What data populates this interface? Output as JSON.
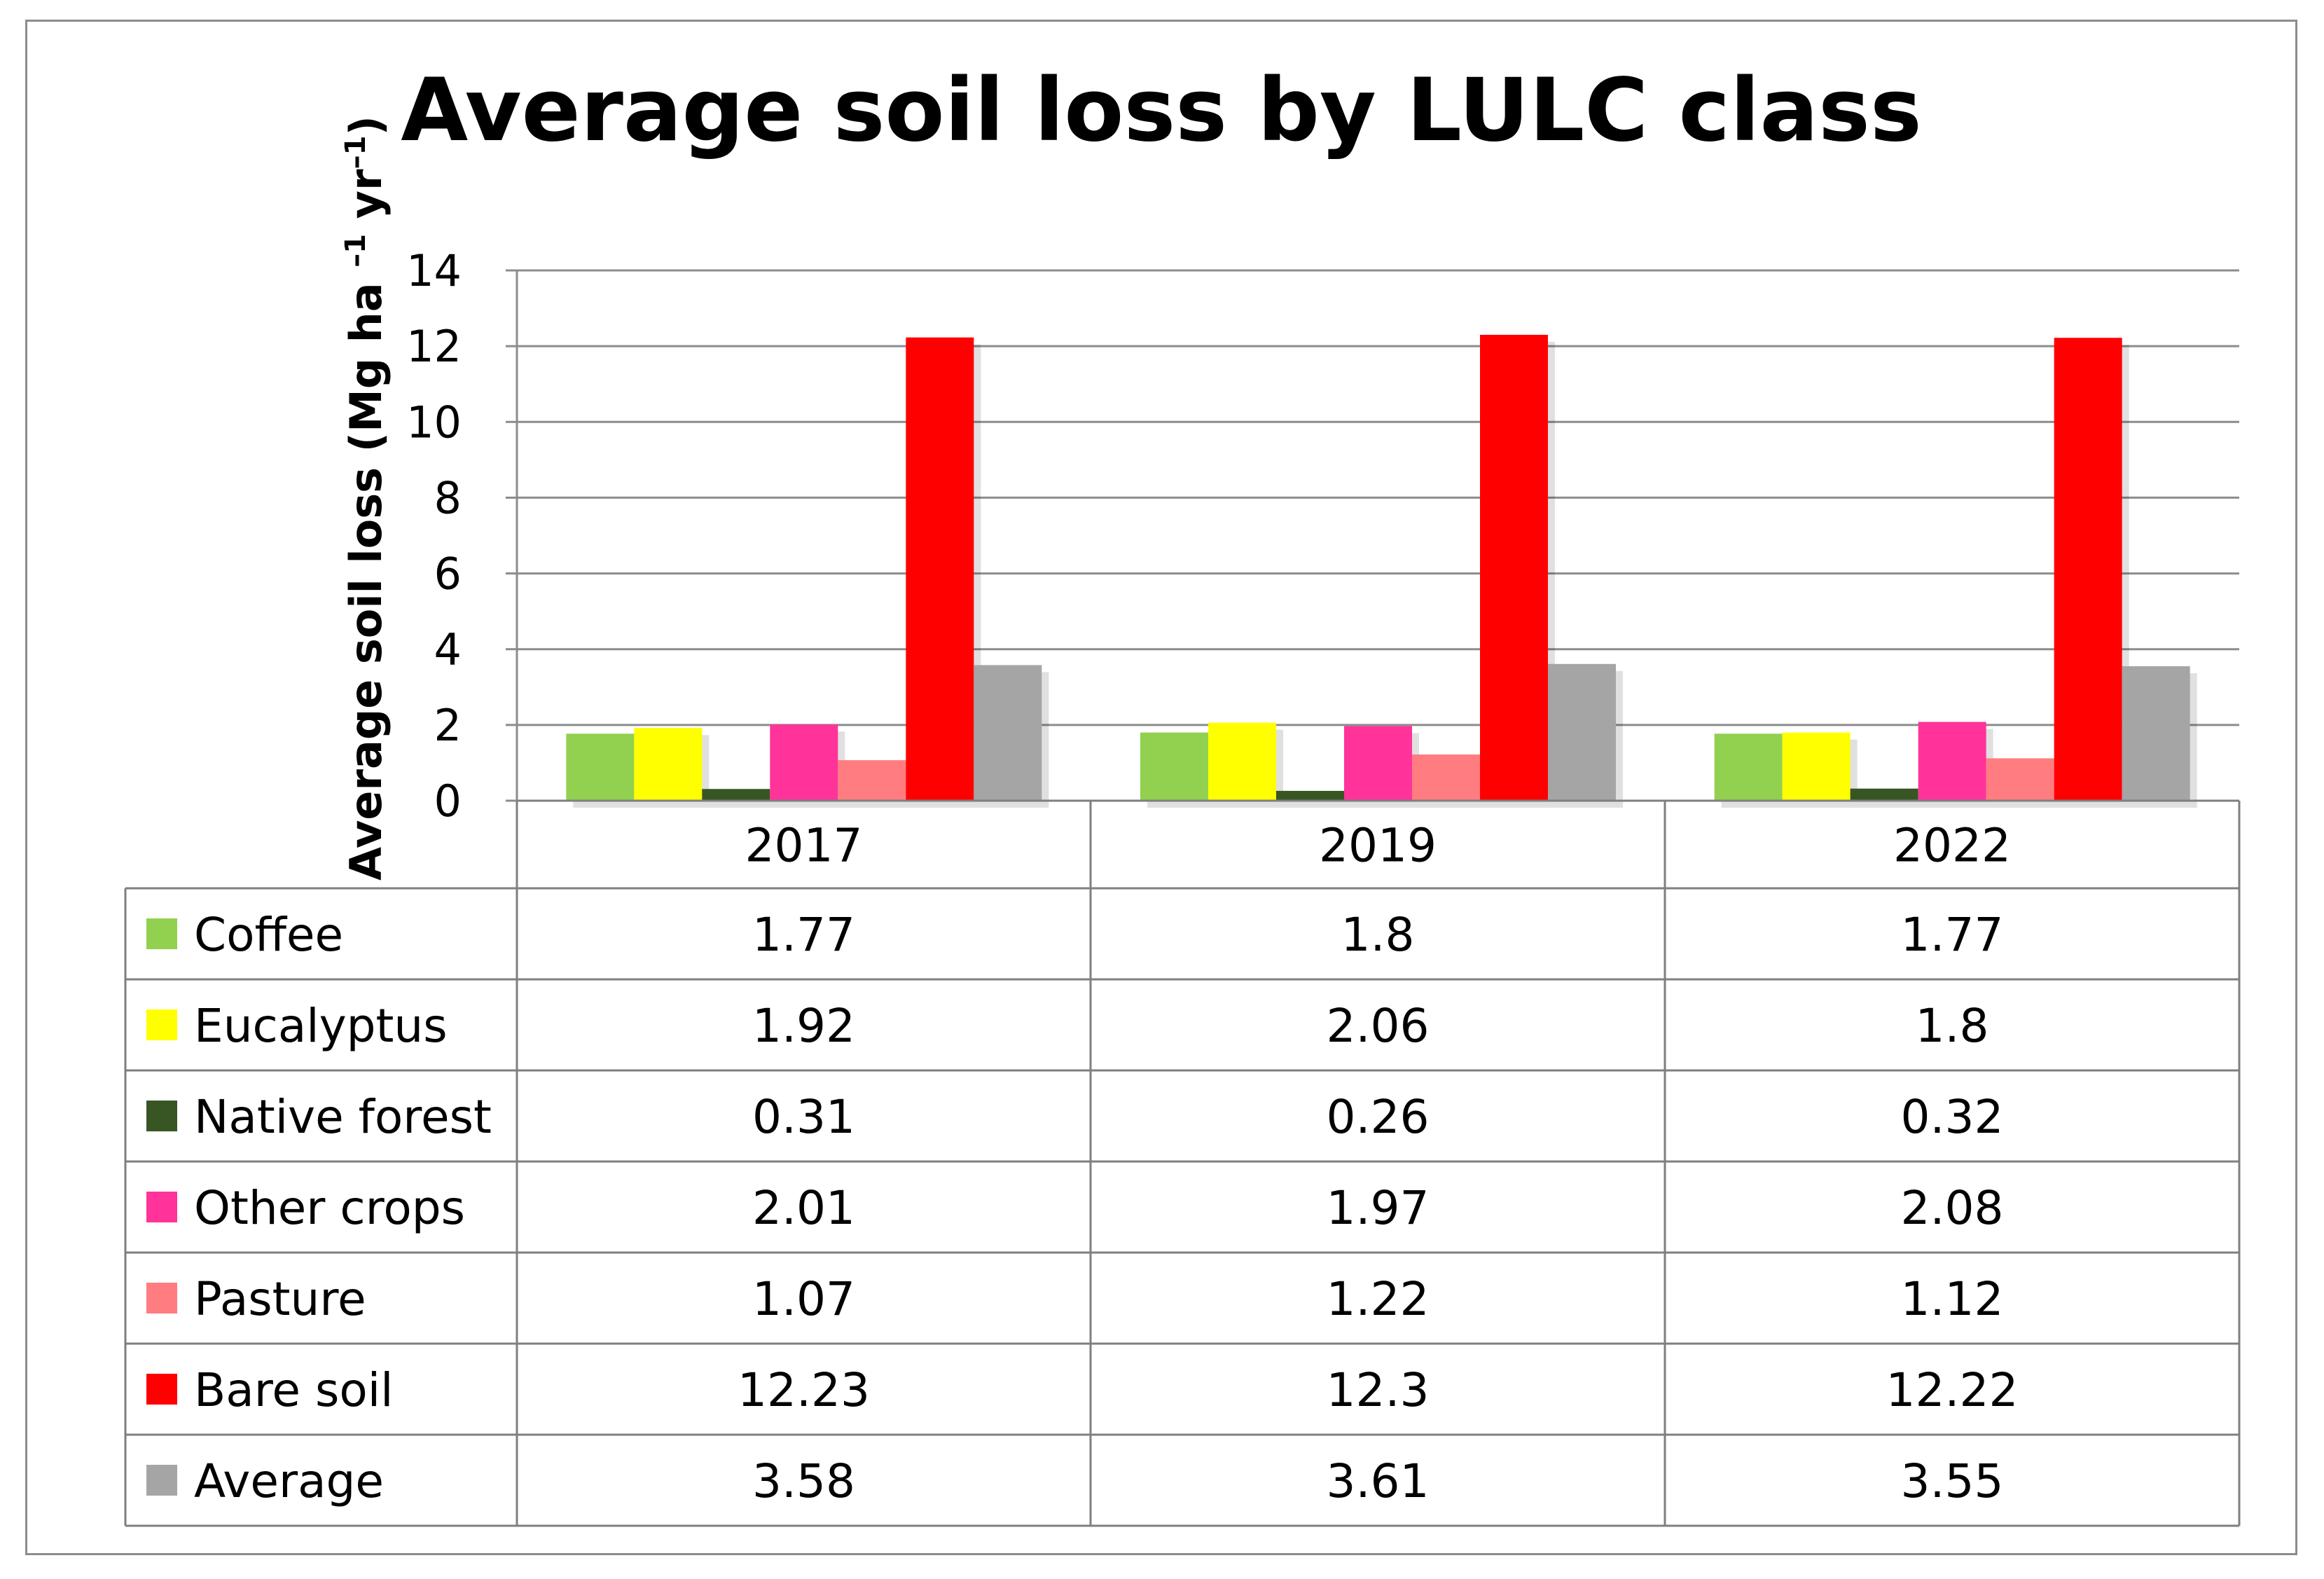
{
  "chart_data": {
    "type": "bar",
    "title": "Average soil loss by LULC class",
    "ylabel": "Average soil loss (Mg ha –1 yr–1)",
    "ylabel_parts": {
      "prefix": "Average soil loss (Mg ha ",
      "sup1": "–1",
      "mid": " yr",
      "sup2": "–1",
      "suffix": ")"
    },
    "xlabel": "",
    "ylim": [
      0,
      14
    ],
    "yticks": [
      0,
      2,
      4,
      6,
      8,
      10,
      12,
      14
    ],
    "categories": [
      "2017",
      "2019",
      "2022"
    ],
    "grid": true,
    "legend": "data-table",
    "series": [
      {
        "name": "Coffee",
        "color": "#92d050",
        "values": [
          1.77,
          1.8,
          1.77
        ]
      },
      {
        "name": "Eucalyptus",
        "color": "#ffff00",
        "values": [
          1.92,
          2.06,
          1.8
        ]
      },
      {
        "name": "Native forest",
        "color": "#375623",
        "values": [
          0.31,
          0.26,
          0.32
        ]
      },
      {
        "name": "Other crops",
        "color": "#ff3399",
        "values": [
          2.01,
          1.97,
          2.08
        ]
      },
      {
        "name": "Pasture",
        "color": "#ff7c80",
        "values": [
          1.07,
          1.22,
          1.12
        ]
      },
      {
        "name": "Bare soil",
        "color": "#ff0000",
        "values": [
          12.23,
          12.3,
          12.22
        ]
      },
      {
        "name": "Average",
        "color": "#a5a5a5",
        "values": [
          3.58,
          3.61,
          3.55
        ]
      }
    ]
  }
}
